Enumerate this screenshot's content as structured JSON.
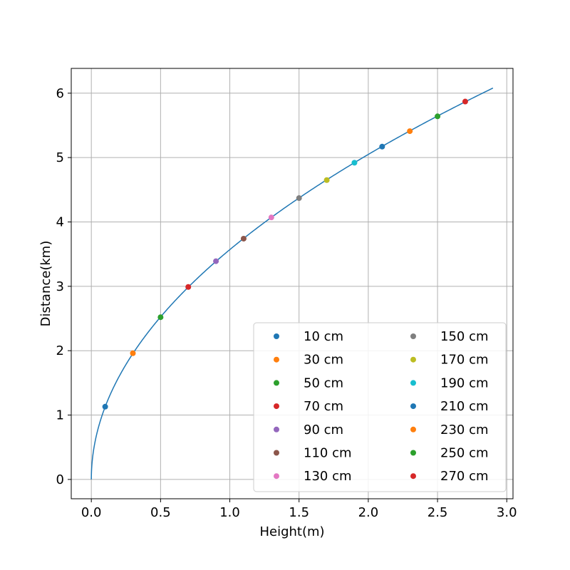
{
  "chart_data": {
    "type": "line",
    "title": "",
    "xlabel": "Height(m)",
    "ylabel": "Distance(km)",
    "xlim": [
      -0.145,
      3.045
    ],
    "ylim": [
      -0.3,
      6.385
    ],
    "xticks": [
      0.0,
      0.5,
      1.0,
      1.5,
      2.0,
      2.5,
      3.0
    ],
    "xtick_labels": [
      "0.0",
      "0.5",
      "1.0",
      "1.5",
      "2.0",
      "2.5",
      "3.0"
    ],
    "yticks": [
      0,
      1,
      2,
      3,
      4,
      5,
      6
    ],
    "ytick_labels": [
      "0",
      "1",
      "2",
      "3",
      "4",
      "5",
      "6"
    ],
    "grid": true,
    "legend": {
      "position": "lower-right",
      "columns": 2
    },
    "curve": {
      "formula": "distance_km = 3.57 * sqrt(height_m)",
      "x_range": [
        0.0,
        2.9
      ],
      "color": "#1f77b4"
    },
    "points": [
      {
        "label": "10 cm",
        "x": 0.1,
        "y": 1.13,
        "color": "#1f77b4"
      },
      {
        "label": "30 cm",
        "x": 0.3,
        "y": 1.96,
        "color": "#ff7f0e"
      },
      {
        "label": "50 cm",
        "x": 0.5,
        "y": 2.52,
        "color": "#2ca02c"
      },
      {
        "label": "70 cm",
        "x": 0.7,
        "y": 2.99,
        "color": "#d62728"
      },
      {
        "label": "90 cm",
        "x": 0.9,
        "y": 3.39,
        "color": "#9467bd"
      },
      {
        "label": "110 cm",
        "x": 1.1,
        "y": 3.74,
        "color": "#8c564b"
      },
      {
        "label": "130 cm",
        "x": 1.3,
        "y": 4.07,
        "color": "#e377c2"
      },
      {
        "label": "150 cm",
        "x": 1.5,
        "y": 4.37,
        "color": "#7f7f7f"
      },
      {
        "label": "170 cm",
        "x": 1.7,
        "y": 4.65,
        "color": "#bcbd22"
      },
      {
        "label": "190 cm",
        "x": 1.9,
        "y": 4.92,
        "color": "#17becf"
      },
      {
        "label": "210 cm",
        "x": 2.1,
        "y": 5.17,
        "color": "#1f77b4"
      },
      {
        "label": "230 cm",
        "x": 2.3,
        "y": 5.41,
        "color": "#ff7f0e"
      },
      {
        "label": "250 cm",
        "x": 2.5,
        "y": 5.64,
        "color": "#2ca02c"
      },
      {
        "label": "270 cm",
        "x": 2.7,
        "y": 5.87,
        "color": "#d62728"
      }
    ]
  }
}
